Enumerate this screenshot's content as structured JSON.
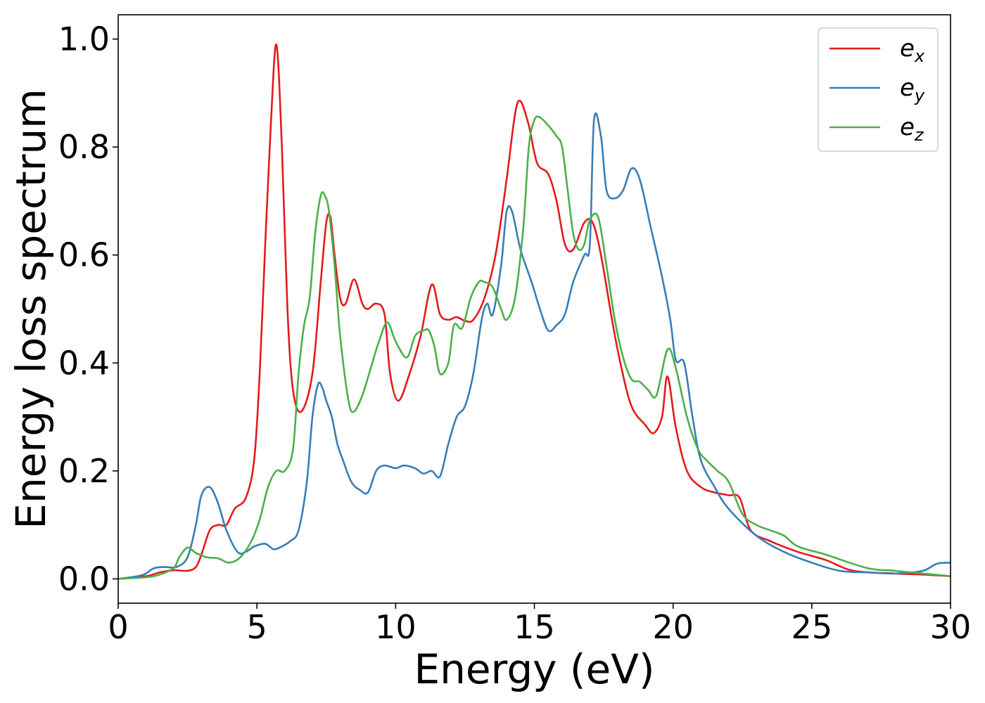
{
  "chart_data": {
    "type": "line",
    "xlabel": "Energy (eV)",
    "ylabel": "Energy loss spectrum",
    "xlim": [
      0,
      30
    ],
    "ylim": [
      -0.045,
      1.045
    ],
    "xticks": [
      0,
      5,
      10,
      15,
      20,
      25,
      30
    ],
    "yticks": [
      0.0,
      0.2,
      0.4,
      0.6,
      0.8,
      1.0
    ],
    "xtick_labels": [
      "0",
      "5",
      "10",
      "15",
      "20",
      "25",
      "30"
    ],
    "ytick_labels": [
      "0.0",
      "0.2",
      "0.4",
      "0.6",
      "0.8",
      "1.0"
    ],
    "grid": false,
    "legend_position": "top-right",
    "series": [
      {
        "name": "e_x",
        "label_main": "e",
        "label_sub": "x",
        "color": "#e41a1c",
        "x": [
          0,
          1.0,
          1.5,
          2.0,
          2.5,
          2.8,
          3.0,
          3.3,
          3.6,
          3.9,
          4.2,
          4.6,
          4.9,
          5.1,
          5.3,
          5.5,
          5.7,
          5.9,
          6.1,
          6.3,
          6.6,
          7.0,
          7.3,
          7.5,
          7.65,
          7.8,
          8.0,
          8.2,
          8.5,
          8.8,
          9.0,
          9.3,
          9.6,
          9.8,
          10.1,
          10.5,
          10.9,
          11.3,
          11.6,
          11.9,
          12.2,
          12.5,
          12.8,
          13.2,
          13.6,
          14.0,
          14.3,
          14.5,
          14.8,
          15.1,
          15.5,
          15.8,
          16.1,
          16.4,
          16.8,
          17.1,
          17.4,
          17.8,
          18.1,
          18.5,
          19.0,
          19.3,
          19.6,
          19.8,
          20.1,
          20.5,
          21.0,
          21.5,
          22.0,
          22.4,
          22.8,
          23.5,
          24.5,
          25.5,
          26.5,
          28.0,
          29.0,
          30.0
        ],
        "y": [
          0.0,
          0.005,
          0.012,
          0.016,
          0.015,
          0.022,
          0.045,
          0.09,
          0.1,
          0.1,
          0.13,
          0.15,
          0.22,
          0.38,
          0.62,
          0.84,
          0.99,
          0.8,
          0.5,
          0.35,
          0.31,
          0.38,
          0.55,
          0.66,
          0.67,
          0.6,
          0.52,
          0.51,
          0.555,
          0.51,
          0.5,
          0.51,
          0.49,
          0.38,
          0.33,
          0.38,
          0.45,
          0.545,
          0.49,
          0.48,
          0.485,
          0.478,
          0.48,
          0.52,
          0.6,
          0.74,
          0.86,
          0.885,
          0.84,
          0.77,
          0.75,
          0.7,
          0.62,
          0.61,
          0.66,
          0.66,
          0.6,
          0.48,
          0.4,
          0.32,
          0.285,
          0.27,
          0.3,
          0.375,
          0.28,
          0.2,
          0.17,
          0.16,
          0.155,
          0.15,
          0.09,
          0.07,
          0.05,
          0.035,
          0.015,
          0.01,
          0.008,
          0.005
        ]
      },
      {
        "name": "e_y",
        "label_main": "e",
        "label_sub": "y",
        "color": "#377eb8",
        "x": [
          0,
          0.7,
          1.0,
          1.3,
          1.7,
          2.1,
          2.5,
          2.8,
          3.0,
          3.3,
          3.6,
          3.9,
          4.3,
          4.6,
          4.9,
          5.3,
          5.6,
          5.9,
          6.2,
          6.5,
          6.8,
          7.0,
          7.2,
          7.35,
          7.5,
          7.7,
          7.9,
          8.1,
          8.4,
          8.7,
          9.0,
          9.3,
          9.6,
          10.0,
          10.3,
          10.7,
          11.0,
          11.3,
          11.6,
          11.9,
          12.2,
          12.5,
          12.8,
          13.1,
          13.3,
          13.5,
          13.8,
          14.0,
          14.2,
          14.5,
          14.9,
          15.2,
          15.5,
          15.8,
          16.1,
          16.4,
          16.8,
          17.0,
          17.15,
          17.4,
          17.6,
          17.9,
          18.2,
          18.5,
          18.8,
          19.2,
          19.6,
          19.9,
          20.1,
          20.4,
          20.7,
          21.0,
          21.5,
          22.0,
          23.0,
          24.0,
          25.0,
          26.0,
          27.0,
          28.0,
          29.0,
          29.5,
          30.0
        ],
        "y": [
          0.0,
          0.005,
          0.01,
          0.02,
          0.022,
          0.022,
          0.04,
          0.1,
          0.155,
          0.17,
          0.14,
          0.09,
          0.05,
          0.05,
          0.06,
          0.065,
          0.055,
          0.06,
          0.07,
          0.09,
          0.18,
          0.3,
          0.36,
          0.355,
          0.33,
          0.3,
          0.25,
          0.22,
          0.18,
          0.165,
          0.16,
          0.2,
          0.21,
          0.205,
          0.21,
          0.205,
          0.195,
          0.2,
          0.19,
          0.25,
          0.3,
          0.32,
          0.38,
          0.48,
          0.51,
          0.49,
          0.58,
          0.68,
          0.68,
          0.61,
          0.55,
          0.5,
          0.46,
          0.47,
          0.49,
          0.55,
          0.6,
          0.62,
          0.85,
          0.82,
          0.72,
          0.705,
          0.72,
          0.76,
          0.74,
          0.65,
          0.56,
          0.48,
          0.405,
          0.4,
          0.3,
          0.22,
          0.17,
          0.13,
          0.08,
          0.05,
          0.03,
          0.015,
          0.012,
          0.01,
          0.015,
          0.028,
          0.03
        ]
      },
      {
        "name": "e_z",
        "label_main": "e",
        "label_sub": "z",
        "color": "#4daf4a",
        "x": [
          0,
          1.0,
          1.5,
          2.0,
          2.2,
          2.5,
          2.8,
          3.2,
          3.6,
          4.0,
          4.4,
          4.8,
          5.1,
          5.4,
          5.7,
          6.0,
          6.3,
          6.5,
          6.7,
          6.9,
          7.1,
          7.3,
          7.45,
          7.6,
          7.8,
          8.0,
          8.3,
          8.5,
          8.8,
          9.1,
          9.4,
          9.7,
          10.0,
          10.4,
          10.7,
          11.0,
          11.2,
          11.4,
          11.6,
          11.9,
          12.1,
          12.4,
          12.7,
          13.0,
          13.2,
          13.5,
          13.8,
          14.0,
          14.3,
          14.6,
          14.8,
          15.0,
          15.2,
          15.5,
          15.8,
          16.0,
          16.2,
          16.4,
          16.6,
          16.8,
          17.0,
          17.3,
          17.6,
          17.9,
          18.2,
          18.5,
          18.8,
          19.1,
          19.4,
          19.8,
          20.1,
          20.5,
          20.9,
          21.2,
          21.6,
          22.0,
          22.5,
          23.0,
          23.5,
          24.0,
          24.5,
          25.5,
          27.0,
          28.0,
          29.0,
          30.0
        ],
        "y": [
          0.0,
          0.003,
          0.008,
          0.02,
          0.04,
          0.058,
          0.048,
          0.04,
          0.038,
          0.03,
          0.04,
          0.07,
          0.11,
          0.17,
          0.2,
          0.2,
          0.24,
          0.38,
          0.47,
          0.52,
          0.64,
          0.71,
          0.71,
          0.68,
          0.58,
          0.45,
          0.33,
          0.31,
          0.34,
          0.39,
          0.44,
          0.475,
          0.44,
          0.41,
          0.45,
          0.46,
          0.46,
          0.43,
          0.38,
          0.4,
          0.47,
          0.465,
          0.52,
          0.55,
          0.55,
          0.54,
          0.5,
          0.48,
          0.52,
          0.65,
          0.8,
          0.85,
          0.855,
          0.84,
          0.82,
          0.8,
          0.72,
          0.64,
          0.61,
          0.62,
          0.665,
          0.67,
          0.58,
          0.48,
          0.41,
          0.37,
          0.365,
          0.35,
          0.34,
          0.425,
          0.39,
          0.3,
          0.24,
          0.22,
          0.2,
          0.18,
          0.12,
          0.1,
          0.09,
          0.08,
          0.06,
          0.045,
          0.02,
          0.015,
          0.01,
          0.005
        ]
      }
    ]
  }
}
